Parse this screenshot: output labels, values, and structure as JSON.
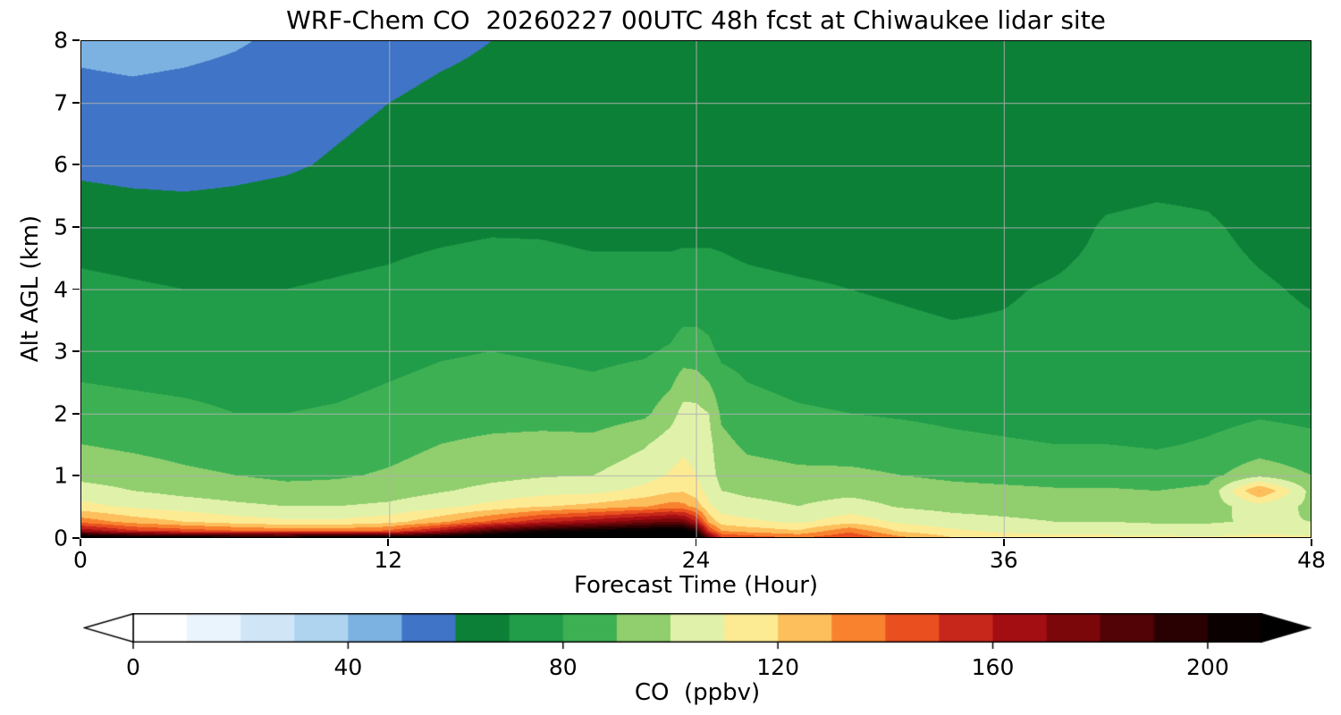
{
  "chart_data": {
    "type": "heatmap",
    "title": "WRF-Chem CO  20260227 00UTC 48h fcst at Chiwaukee lidar site",
    "xlabel": "Forecast Time (Hour)",
    "ylabel": "Alt AGL (km)",
    "xlim": [
      0,
      48
    ],
    "ylim": [
      0,
      8
    ],
    "x_ticks": [
      0,
      12,
      24,
      36,
      48
    ],
    "y_ticks": [
      0,
      1,
      2,
      3,
      4,
      5,
      6,
      7,
      8
    ],
    "grid": true,
    "grid_color": "#b0b0b0",
    "grid_x": [
      12,
      24,
      36
    ],
    "grid_y": [
      1,
      2,
      3,
      4,
      5,
      6,
      7
    ],
    "x": [
      0,
      2,
      4,
      6,
      8,
      10,
      12,
      14,
      16,
      18,
      20,
      22,
      23,
      23.5,
      24,
      24.5,
      25,
      26,
      28,
      30,
      32,
      34,
      36,
      38,
      40,
      42,
      44,
      46,
      48
    ],
    "alt_km": [
      0,
      0.1,
      0.25,
      0.5,
      0.75,
      1,
      1.5,
      2,
      2.5,
      3,
      4,
      5,
      6,
      7,
      8
    ],
    "values_ppbv": [
      [
        215,
        210,
        206,
        203,
        204,
        207,
        206,
        212,
        218,
        222,
        224,
        226,
        228,
        228,
        220,
        180,
        150,
        145,
        138,
        148,
        132,
        120,
        115,
        113,
        113,
        112,
        111,
        113,
        112
      ],
      [
        168,
        152,
        146,
        141,
        137,
        137,
        142,
        162,
        188,
        202,
        208,
        212,
        214,
        213,
        200,
        150,
        130,
        126,
        121,
        138,
        118,
        112,
        108,
        106,
        105,
        104,
        104,
        106,
        105
      ],
      [
        136,
        126,
        120,
        115,
        112,
        112,
        116,
        127,
        142,
        157,
        166,
        176,
        180,
        178,
        160,
        128,
        115,
        112,
        108,
        116,
        108,
        104,
        102,
        100,
        100,
        99,
        99,
        101,
        100
      ],
      [
        113,
        108,
        105,
        102,
        100,
        100,
        102,
        107,
        113,
        119,
        123,
        129,
        134,
        133,
        126,
        112,
        105,
        103,
        100,
        104,
        99,
        97,
        96,
        95,
        95,
        94,
        95,
        106,
        98
      ],
      [
        104,
        100,
        97,
        95,
        93,
        93,
        95,
        99,
        103,
        106,
        107,
        113,
        118,
        119,
        114,
        106,
        100,
        98,
        96,
        97,
        95,
        93,
        92,
        91,
        91,
        90,
        92,
        131,
        97
      ],
      [
        97,
        95,
        92,
        90,
        88,
        89,
        91,
        94,
        97,
        99,
        100,
        106,
        111,
        113,
        110,
        104,
        97,
        94,
        92,
        92,
        90,
        88,
        87,
        86,
        86,
        85,
        87,
        97,
        90
      ],
      [
        90,
        88,
        86,
        84,
        84,
        85,
        87,
        90,
        92,
        93,
        93,
        99,
        105,
        108,
        107,
        103,
        93,
        88,
        86,
        85,
        84,
        82,
        81,
        80,
        80,
        79,
        81,
        84,
        82
      ],
      [
        84,
        83,
        82,
        80,
        80,
        81,
        83,
        85,
        86,
        86,
        85,
        88,
        96,
        103,
        103,
        100,
        88,
        83,
        81,
        80,
        79,
        78,
        77,
        76,
        76,
        75,
        77,
        79,
        78
      ],
      [
        80,
        79,
        78,
        77,
        77,
        78,
        80,
        82,
        83,
        82,
        81,
        83,
        88,
        95,
        94,
        90,
        83,
        80,
        78,
        77,
        76,
        75,
        74,
        74,
        73,
        73,
        74,
        76,
        75
      ],
      [
        77,
        76,
        75,
        74,
        74,
        75,
        77,
        79,
        80,
        79,
        78,
        79,
        81,
        84,
        84,
        82,
        78,
        77,
        75,
        74,
        73,
        72,
        72,
        73,
        74,
        75,
        74,
        73,
        72
      ],
      [
        72,
        71,
        70,
        70,
        70,
        71,
        72,
        74,
        75,
        74,
        73,
        73,
        73,
        74,
        74,
        74,
        73,
        72,
        71,
        70,
        69,
        68,
        69,
        71,
        73,
        74,
        73,
        71,
        69
      ],
      [
        66,
        65,
        64,
        64,
        65,
        66,
        67,
        68,
        69,
        69,
        68,
        68,
        68,
        68,
        68,
        68,
        68,
        67,
        66,
        66,
        65,
        64,
        64,
        66,
        71,
        72,
        71,
        68,
        66
      ],
      [
        58,
        57,
        57,
        58,
        59,
        61,
        63,
        65,
        66,
        66,
        66,
        66,
        66,
        66,
        66,
        66,
        66,
        65,
        65,
        64,
        64,
        64,
        64,
        64,
        66,
        67,
        67,
        65,
        64
      ],
      [
        54,
        53,
        54,
        55,
        56,
        58,
        60,
        62,
        63,
        64,
        64,
        64,
        64,
        64,
        64,
        64,
        64,
        64,
        63,
        63,
        63,
        63,
        63,
        63,
        64,
        64,
        64,
        63,
        62
      ],
      [
        47,
        46,
        47,
        49,
        52,
        54,
        56,
        58,
        60,
        61,
        61,
        62,
        62,
        62,
        62,
        62,
        62,
        62,
        61,
        61,
        61,
        61,
        62,
        62,
        63,
        63,
        63,
        62,
        61
      ]
    ],
    "colorbar": {
      "label": "CO  (ppbv)",
      "ticks": [
        0,
        40,
        80,
        120,
        160,
        200
      ],
      "range": [
        0,
        210
      ],
      "band_width_ppbv": 10,
      "extend": "both",
      "under_color": "#ffffff",
      "over_color": "#000000",
      "band_colors": [
        "#ffffff",
        "#eaf4fc",
        "#d0e6f7",
        "#aed4f0",
        "#7cb2e2",
        "#3f74c6",
        "#0d8038",
        "#219c48",
        "#3db054",
        "#90ce6e",
        "#e0f2aa",
        "#fdeb94",
        "#fdbe5c",
        "#f8822e",
        "#e94f1f",
        "#c7261a",
        "#a30e13",
        "#7c070b",
        "#520305",
        "#2a0102",
        "#0a0000"
      ]
    }
  }
}
